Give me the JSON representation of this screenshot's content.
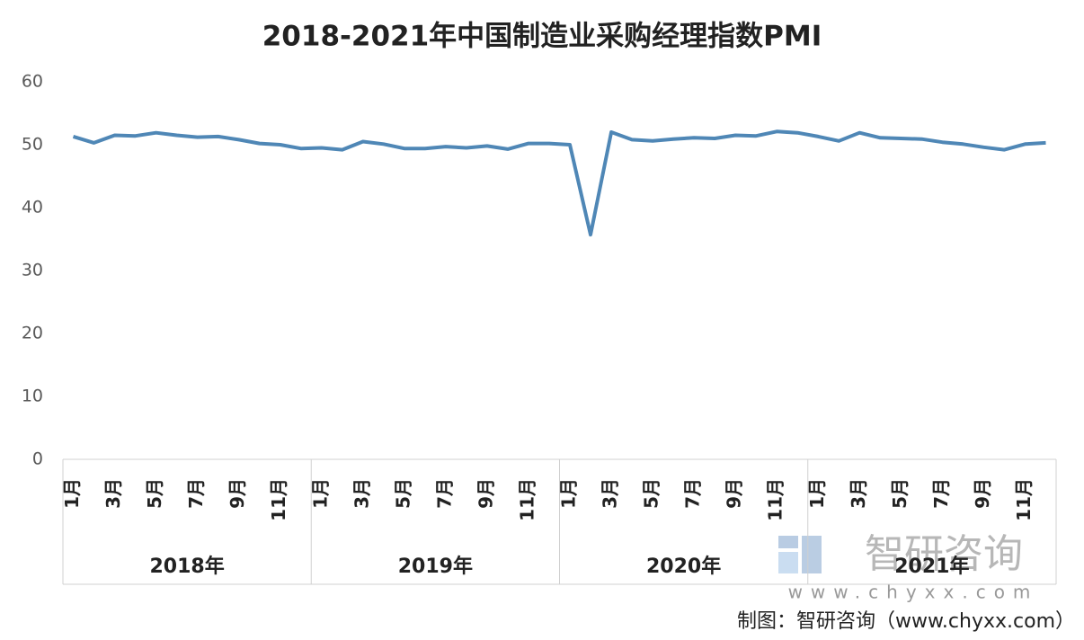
{
  "chart_data": {
    "type": "line",
    "title": "2018-2021年中国制造业采购经理指数PMI",
    "categories": [
      "1月",
      null,
      "3月",
      null,
      "5月",
      null,
      "7月",
      null,
      "9月",
      null,
      "11月",
      null,
      "1月",
      null,
      "3月",
      null,
      "5月",
      null,
      "7月",
      null,
      "9月",
      null,
      "11月",
      null,
      "1月",
      null,
      "3月",
      null,
      "5月",
      null,
      "7月",
      null,
      "9月",
      null,
      "11月",
      null,
      "1月",
      null,
      "3月",
      null,
      "5月",
      null,
      "7月",
      null,
      "9月",
      null,
      "11月",
      null
    ],
    "groups": [
      "2018年",
      "2019年",
      "2020年",
      "2021年"
    ],
    "series": [
      {
        "name": "PMI",
        "color": "#4f87b6",
        "values": [
          51.3,
          50.3,
          51.5,
          51.4,
          51.9,
          51.5,
          51.2,
          51.3,
          50.8,
          50.2,
          50.0,
          49.4,
          49.5,
          49.2,
          50.5,
          50.1,
          49.4,
          49.4,
          49.7,
          49.5,
          49.8,
          49.3,
          50.2,
          50.2,
          50.0,
          35.7,
          52.0,
          50.8,
          50.6,
          50.9,
          51.1,
          51.0,
          51.5,
          51.4,
          52.1,
          51.9,
          51.3,
          50.6,
          51.9,
          51.1,
          51.0,
          50.9,
          50.4,
          50.1,
          49.6,
          49.2,
          50.1,
          50.3
        ]
      }
    ],
    "ylim": [
      0,
      60
    ],
    "yticks": [
      0,
      10,
      20,
      30,
      40,
      50,
      60
    ],
    "grid": false,
    "watermark": "智研咨询",
    "watermark_url": "www.chyxx.com",
    "source": "制图：智研咨询（www.chyxx.com）"
  }
}
